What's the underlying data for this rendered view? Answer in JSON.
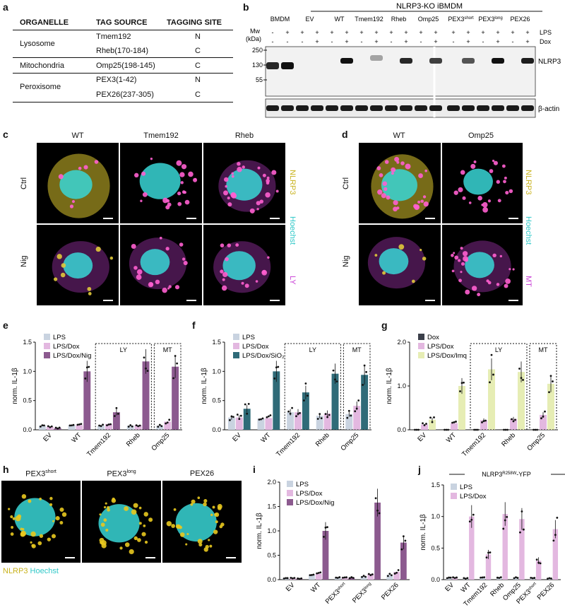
{
  "panels": {
    "a": "a",
    "b": "b",
    "c": "c",
    "d": "d",
    "e": "e",
    "f": "f",
    "g": "g",
    "h": "h",
    "i": "i",
    "j": "j"
  },
  "table": {
    "headers": [
      "ORGANELLE",
      "TAG SOURCE",
      "TAGGING SITE"
    ],
    "rows": [
      {
        "organelle": "Lysosome",
        "tag": "Tmem192",
        "site": "N"
      },
      {
        "organelle": "",
        "tag": "Rheb(170-184)",
        "site": "C"
      },
      {
        "organelle": "Mitochondria",
        "tag": "Omp25(198-145)",
        "site": "C"
      },
      {
        "organelle": "Peroxisome",
        "tag": "PEX3(1-42)",
        "site": "N"
      },
      {
        "organelle": "",
        "tag": "PEX26(237-305)",
        "site": "C"
      }
    ]
  },
  "blot": {
    "header": "NLRP3-KO iBMDM",
    "lanes": [
      "BMDM",
      "EV",
      "WT",
      "Tmem192",
      "Rheb",
      "Omp25",
      "PEX3",
      "PEX3",
      "PEX26"
    ],
    "lane_sups": [
      "",
      "",
      "",
      "",
      "",
      "",
      "short",
      "long",
      ""
    ],
    "mw_label": "Mw",
    "kda_label": "(kDa)",
    "lps_label": "LPS",
    "dox_label": "Dox",
    "lps_signs": [
      "-",
      "+",
      "+",
      "+",
      "+",
      "+",
      "+",
      "+",
      "+",
      "+",
      "+",
      "+",
      "+",
      "+",
      "+",
      "+",
      "+",
      "+"
    ],
    "dox_signs": [
      "-",
      "-",
      "-",
      "+",
      "-",
      "+",
      "-",
      "+",
      "-",
      "+",
      "-",
      "+",
      "-",
      "+",
      "-",
      "+",
      "-",
      "+"
    ],
    "mw_markers": [
      "250",
      "130",
      "55"
    ],
    "band_nlrp3": "NLRP3",
    "band_actin": "β-actin"
  },
  "micro_c": {
    "cols": [
      "WT",
      "Tmem192",
      "Rheb"
    ],
    "rows": [
      "Ctrl",
      "Nig"
    ],
    "stains": [
      "NLRP3",
      "Hoechst",
      "LY"
    ]
  },
  "micro_d": {
    "cols": [
      "WT",
      "Omp25"
    ],
    "rows": [
      "Ctrl",
      "Nig"
    ],
    "stains": [
      "NLRP3",
      "Hoechst",
      "MT"
    ]
  },
  "micro_h": {
    "cols_base": [
      "PEX3",
      "PEX3",
      "PEX26"
    ],
    "cols_sup": [
      "short",
      "long",
      ""
    ],
    "legend": [
      "NLRP3",
      "Hoechst"
    ]
  },
  "colors": {
    "nlrp3": "#d9c22b",
    "hoechst": "#38d6d6",
    "magenta": "#c93fd6",
    "lps": "#c9d3e0",
    "lpsdox": "#e3b8e0",
    "nig": "#8c5a8f",
    "sio2": "#2f6b78",
    "dox": "#3b3f4a",
    "imq": "#e6edb4"
  },
  "chart_data": [
    {
      "type": "bar",
      "panel": "e",
      "ylabel": "norm. IL-1β",
      "ylim": [
        0,
        1.5
      ],
      "yticks": [
        "0.0",
        "0.5",
        "1.0",
        "1.5"
      ],
      "categories": [
        "EV",
        "WT",
        "Tmem192",
        "Rheb",
        "Omp25"
      ],
      "series": [
        {
          "name": "LPS",
          "values": [
            0.07,
            0.08,
            0.07,
            0.07,
            0.07
          ]
        },
        {
          "name": "LPS/Dox",
          "values": [
            0.05,
            0.08,
            0.1,
            0.08,
            0.14
          ]
        },
        {
          "name": "LPS/Dox/Nig",
          "values": [
            0.03,
            1.0,
            0.3,
            1.17,
            1.08
          ]
        }
      ],
      "boxes": [
        {
          "label": "LY",
          "from": 2,
          "to": 3
        },
        {
          "label": "MT",
          "from": 4,
          "to": 4
        }
      ]
    },
    {
      "type": "bar",
      "panel": "f",
      "ylabel": "norm. IL-1β",
      "ylim": [
        0,
        1.5
      ],
      "yticks": [
        "0.0",
        "0.5",
        "1.0",
        "1.5"
      ],
      "categories": [
        "EV",
        "WT",
        "Tmem192",
        "Rheb",
        "Omp25"
      ],
      "series": [
        {
          "name": "LPS",
          "values": [
            0.21,
            0.19,
            0.3,
            0.24,
            0.27
          ]
        },
        {
          "name": "LPS/Dox",
          "values": [
            0.21,
            0.2,
            0.3,
            0.28,
            0.41
          ]
        },
        {
          "name": "LPS/Dox/SiO₂",
          "values": [
            0.36,
            1.0,
            0.64,
            0.96,
            0.94
          ]
        }
      ],
      "boxes": [
        {
          "label": "LY",
          "from": 2,
          "to": 3
        },
        {
          "label": "MT",
          "from": 4,
          "to": 4
        }
      ]
    },
    {
      "type": "bar",
      "panel": "g",
      "ylabel": "norm. IL-1β",
      "ylim": [
        0,
        2.0
      ],
      "yticks": [
        "0.0",
        "1.0",
        "2.0"
      ],
      "categories": [
        "EV",
        "WT",
        "Tmem192",
        "Rheb",
        "Omp25"
      ],
      "series": [
        {
          "name": "Dox",
          "values": [
            0.0,
            0.0,
            0.0,
            0.0,
            0.0
          ]
        },
        {
          "name": "LPS/Dox",
          "values": [
            0.12,
            0.15,
            0.22,
            0.25,
            0.34
          ]
        },
        {
          "name": "LPS/Dox/Imq",
          "values": [
            0.23,
            1.0,
            1.38,
            1.32,
            1.05
          ]
        }
      ],
      "boxes": [
        {
          "label": "LY",
          "from": 2,
          "to": 3
        },
        {
          "label": "MT",
          "from": 4,
          "to": 4
        }
      ]
    },
    {
      "type": "bar",
      "panel": "i",
      "ylabel": "norm. IL-1β",
      "ylim": [
        0,
        2.0
      ],
      "yticks": [
        "0.0",
        "0.5",
        "1.0",
        "1.5",
        "2.0"
      ],
      "categories": [
        "EV",
        "WT",
        "PEX3short",
        "PEX3long",
        "PEX26"
      ],
      "series": [
        {
          "name": "LPS",
          "values": [
            0.03,
            0.1,
            0.04,
            0.07,
            0.1
          ]
        },
        {
          "name": "LPS/Dox",
          "values": [
            0.03,
            0.12,
            0.05,
            0.12,
            0.16
          ]
        },
        {
          "name": "LPS/Dox/Nig",
          "values": [
            0.02,
            1.0,
            0.04,
            1.58,
            0.76
          ]
        }
      ]
    },
    {
      "type": "bar",
      "panel": "j",
      "title": "NLRP3",
      "ylabel": "norm. IL-1β",
      "ylim": [
        0,
        1.5
      ],
      "yticks": [
        "0.0",
        "0.5",
        "1.0",
        "1.5"
      ],
      "categories": [
        "EV",
        "WT",
        "Tmem192",
        "Rheb",
        "Omp25",
        "PEX3short",
        "PEX26"
      ],
      "series": [
        {
          "name": "LPS",
          "values": [
            0.03,
            0.02,
            0.03,
            0.03,
            0.03,
            0.03,
            0.02
          ]
        },
        {
          "name": "LPS/Dox",
          "values": [
            0.03,
            1.0,
            0.4,
            1.04,
            0.96,
            0.3,
            0.8
          ]
        }
      ]
    }
  ]
}
